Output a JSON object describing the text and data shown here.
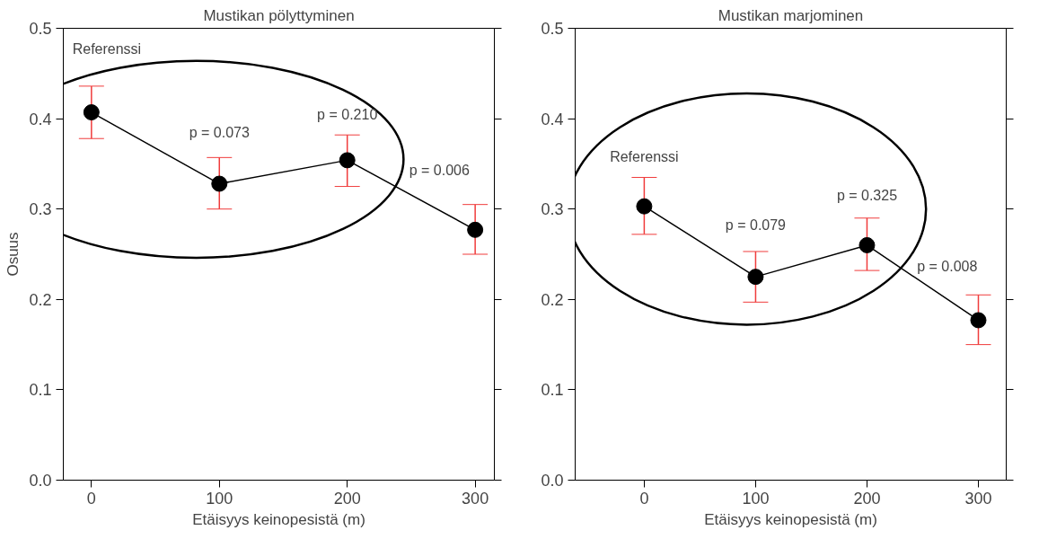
{
  "chart_data": [
    {
      "type": "line",
      "title": "Mustikan pölyttyminen",
      "xlabel": "Etäisyys keinopesistä (m)",
      "ylabel": "Osuus",
      "x": [
        0,
        100,
        200,
        300
      ],
      "series": [
        {
          "color": "#000000",
          "values": [
            0.407,
            0.328,
            0.354,
            0.277
          ],
          "errors": [
            [
              0.378,
              0.436
            ],
            [
              0.3,
              0.357
            ],
            [
              0.325,
              0.382
            ],
            [
              0.25,
              0.305
            ]
          ]
        }
      ],
      "marker": "circle",
      "line_style": "solid",
      "grid": false,
      "xlim": [
        -22,
        315
      ],
      "ylim": [
        0,
        0.5
      ],
      "xticks": [
        0,
        100,
        200,
        300
      ],
      "yticks": [
        {
          "value": 0,
          "label": "0.0"
        },
        0.1,
        0.2,
        0.3,
        0.4,
        0.5
      ],
      "annotations": [
        "Referenssi",
        "p = 0.073",
        "p = 0.210",
        "p = 0.006"
      ]
    },
    {
      "type": "line",
      "title": "Mustikan marjominen",
      "xlabel": "Etäisyys keinopesistä (m)",
      "x": [
        0,
        100,
        200,
        300
      ],
      "series": [
        {
          "color": "#000000",
          "values": [
            0.303,
            0.225,
            0.26,
            0.177
          ],
          "errors": [
            [
              0.272,
              0.335
            ],
            [
              0.197,
              0.253
            ],
            [
              0.232,
              0.29
            ],
            [
              0.15,
              0.205
            ]
          ]
        }
      ],
      "marker": "circle",
      "line_style": "solid",
      "grid": false,
      "xlim": [
        -62,
        325
      ],
      "ylim": [
        0,
        0.5
      ],
      "xticks": [
        0,
        100,
        200,
        300
      ],
      "yticks": [
        {
          "value": 0,
          "label": "0.0"
        },
        0.1,
        0.2,
        0.3,
        0.4,
        0.5
      ],
      "annotations": [
        "Referenssi",
        "p = 0.079",
        "p = 0.325",
        "p = 0.008"
      ]
    }
  ]
}
